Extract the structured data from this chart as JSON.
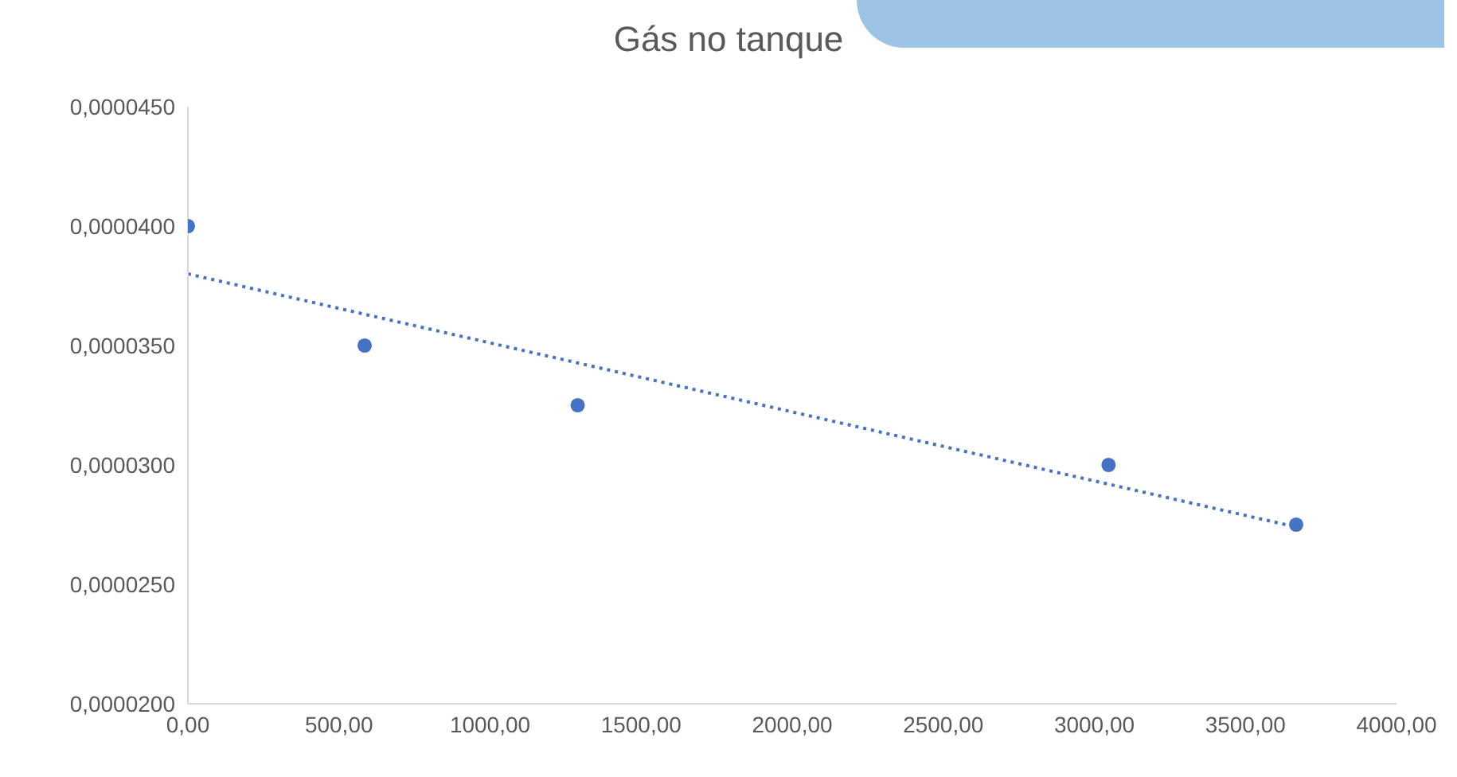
{
  "chart_data": {
    "type": "scatter",
    "title": "Gás no tanque",
    "x": [
      0,
      585,
      1290,
      3047,
      3668
    ],
    "series": [
      {
        "color": "#4472c4",
        "marker": "circle",
        "values": [
          4e-05,
          3.5e-05,
          3.25e-05,
          3e-05,
          2.75e-05
        ]
      },
      {
        "type": "line",
        "color": "#4472c4",
        "marker": "none",
        "line_style": "dotted",
        "x": [
          0,
          3668
        ],
        "values": [
          3.8e-05,
          2.74e-05
        ]
      }
    ],
    "xlim": [
      0,
      4000
    ],
    "xticks": [
      {
        "value": 0,
        "label": "0,00"
      },
      {
        "value": 500,
        "label": "500,00"
      },
      {
        "value": 1000,
        "label": "1000,00"
      },
      {
        "value": 1500,
        "label": "1500,00"
      },
      {
        "value": 2000,
        "label": "2000,00"
      },
      {
        "value": 2500,
        "label": "2500,00"
      },
      {
        "value": 3000,
        "label": "3000,00"
      },
      {
        "value": 3500,
        "label": "3500,00"
      },
      {
        "value": 4000,
        "label": "4000,00"
      }
    ],
    "ylim": [
      2e-05,
      4.5e-05
    ],
    "yticks": [
      {
        "value": 2e-05,
        "label": "0,0000200"
      },
      {
        "value": 2.5e-05,
        "label": "0,0000250"
      },
      {
        "value": 3e-05,
        "label": "0,0000300"
      },
      {
        "value": 3.5e-05,
        "label": "0,0000350"
      },
      {
        "value": 4e-05,
        "label": "0,0000400"
      },
      {
        "value": 4.5e-05,
        "label": "0,0000450"
      }
    ],
    "grid": false,
    "legend": false
  }
}
